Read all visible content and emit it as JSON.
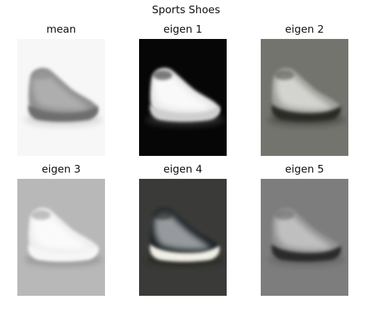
{
  "figure": {
    "title": "Sports Shoes",
    "panels": [
      {
        "title": "mean",
        "variant": "mean",
        "background": "#f7f7f7",
        "shoe": "#8f8f8f",
        "highlight": "#b9b9b9",
        "sole": "#6e6e6e",
        "shadow": "#d9d9d9"
      },
      {
        "title": "eigen 1",
        "variant": "eigen1",
        "background": "#060606",
        "shoe": "#e8e8e8",
        "highlight": "#ffffff",
        "sole": "#cfcfcf",
        "shadow": "#2a2a2a"
      },
      {
        "title": "eigen 2",
        "variant": "eigen2",
        "background": "#74746e",
        "shoe": "#9c9c98",
        "highlight": "#e6e6e2",
        "sole": "#2b2b28",
        "shadow": "#55554f"
      },
      {
        "title": "eigen 3",
        "variant": "eigen3",
        "background": "#b8b8b8",
        "shoe": "#eeeeee",
        "highlight": "#ffffff",
        "sole": "#f6f6f6",
        "shadow": "#9a9a9a"
      },
      {
        "title": "eigen 4",
        "variant": "eigen4",
        "background": "#3a3a38",
        "shoe": "#1e2226",
        "highlight": "#bfc3c6",
        "sole": "#f0efe6",
        "shadow": "#2a2a28"
      },
      {
        "title": "eigen 5",
        "variant": "eigen5",
        "background": "#7d7d7d",
        "shoe": "#8f8f8f",
        "highlight": "#d0d0d0",
        "sole": "#2a2a2a",
        "shadow": "#6a6a6a"
      }
    ]
  }
}
